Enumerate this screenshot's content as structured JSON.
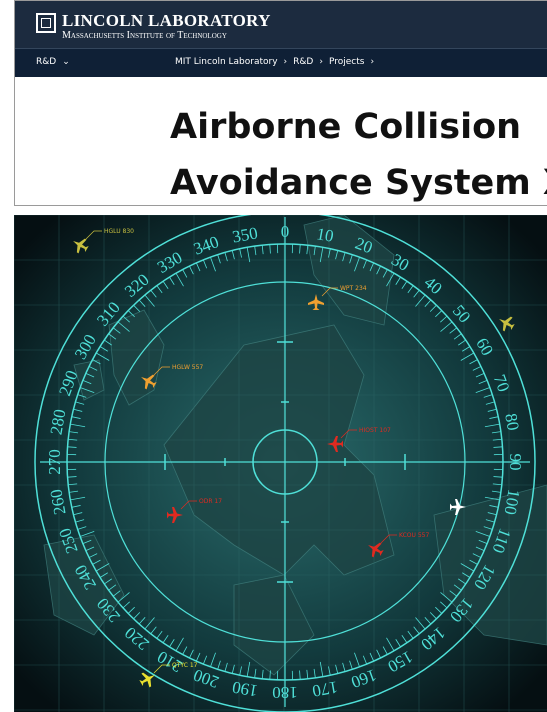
{
  "header": {
    "logo_title": "LINCOLN LABORATORY",
    "logo_subtitle": "Massachusetts Institute of Technology"
  },
  "nav": {
    "menu": "R&D",
    "breadcrumb": [
      "MIT Lincoln Laboratory",
      "R&D",
      "Projects"
    ]
  },
  "page": {
    "title": "Airborne Collision Avoidance System X"
  },
  "image": {
    "compass_labels": [
      "0",
      "10",
      "20",
      "30",
      "40",
      "50",
      "60",
      "70",
      "80",
      "90",
      "100",
      "110",
      "120",
      "130",
      "140",
      "150",
      "160",
      "170",
      "180",
      "190",
      "200",
      "210",
      "220",
      "230",
      "240",
      "250",
      "260",
      "270",
      "280",
      "290",
      "300",
      "310",
      "320",
      "330",
      "340",
      "350"
    ],
    "aircraft": [
      {
        "label": "WPT 234"
      },
      {
        "label": "HGLW 557"
      },
      {
        "label": "HIOST 107"
      },
      {
        "label": "ODR 17"
      },
      {
        "label": "KCOU 557"
      },
      {
        "label": "QTYC 17"
      },
      {
        "label": "HGLU 830"
      }
    ]
  }
}
